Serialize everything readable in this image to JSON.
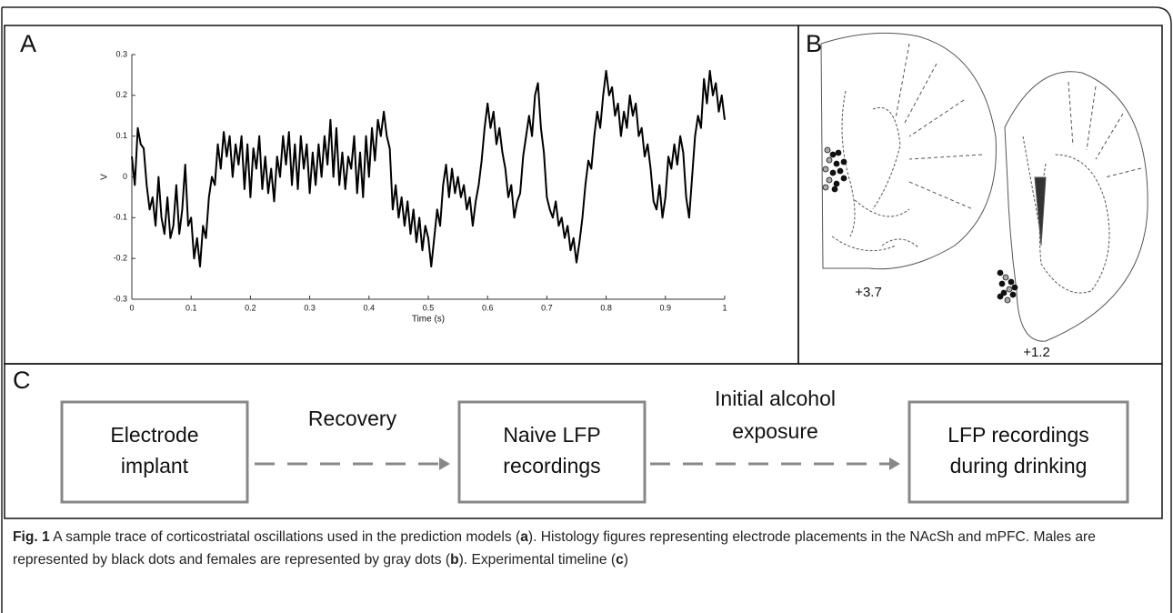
{
  "panels": {
    "a": "A",
    "b": "B",
    "c": "C"
  },
  "chart_data": {
    "type": "line",
    "color": "#000000",
    "xlabel": "Time (s)",
    "ylabel": "V",
    "xlim": [
      0,
      1
    ],
    "ylim": [
      -0.3,
      0.3
    ],
    "xticks": [
      0,
      0.1,
      0.2,
      0.3,
      0.4,
      0.5,
      0.6,
      0.7,
      0.8,
      0.9,
      1
    ],
    "yticks": [
      -0.3,
      -0.2,
      -0.1,
      0,
      0.1,
      0.2,
      0.3
    ],
    "x": [
      0,
      0.005,
      0.01,
      0.015,
      0.02,
      0.025,
      0.03,
      0.035,
      0.04,
      0.045,
      0.05,
      0.055,
      0.06,
      0.065,
      0.07,
      0.075,
      0.08,
      0.085,
      0.09,
      0.095,
      0.1,
      0.105,
      0.11,
      0.115,
      0.12,
      0.125,
      0.13,
      0.135,
      0.14,
      0.145,
      0.15,
      0.155,
      0.16,
      0.165,
      0.17,
      0.175,
      0.18,
      0.185,
      0.19,
      0.195,
      0.2,
      0.205,
      0.21,
      0.215,
      0.22,
      0.225,
      0.23,
      0.235,
      0.24,
      0.245,
      0.25,
      0.255,
      0.26,
      0.265,
      0.27,
      0.275,
      0.28,
      0.285,
      0.29,
      0.295,
      0.3,
      0.305,
      0.31,
      0.315,
      0.32,
      0.325,
      0.33,
      0.335,
      0.34,
      0.345,
      0.35,
      0.355,
      0.36,
      0.365,
      0.37,
      0.375,
      0.38,
      0.385,
      0.39,
      0.395,
      0.4,
      0.405,
      0.41,
      0.415,
      0.42,
      0.425,
      0.43,
      0.435,
      0.44,
      0.445,
      0.45,
      0.455,
      0.46,
      0.465,
      0.47,
      0.475,
      0.48,
      0.485,
      0.49,
      0.495,
      0.5,
      0.505,
      0.51,
      0.515,
      0.52,
      0.525,
      0.53,
      0.535,
      0.54,
      0.545,
      0.55,
      0.555,
      0.56,
      0.565,
      0.57,
      0.575,
      0.58,
      0.585,
      0.59,
      0.595,
      0.6,
      0.605,
      0.61,
      0.615,
      0.62,
      0.625,
      0.63,
      0.635,
      0.64,
      0.645,
      0.65,
      0.655,
      0.66,
      0.665,
      0.67,
      0.675,
      0.68,
      0.685,
      0.69,
      0.695,
      0.7,
      0.705,
      0.71,
      0.715,
      0.72,
      0.725,
      0.73,
      0.735,
      0.74,
      0.745,
      0.75,
      0.755,
      0.76,
      0.765,
      0.77,
      0.775,
      0.78,
      0.785,
      0.79,
      0.795,
      0.8,
      0.805,
      0.81,
      0.815,
      0.82,
      0.825,
      0.83,
      0.835,
      0.84,
      0.845,
      0.85,
      0.855,
      0.86,
      0.865,
      0.87,
      0.875,
      0.88,
      0.885,
      0.89,
      0.895,
      0.9,
      0.905,
      0.91,
      0.915,
      0.92,
      0.925,
      0.93,
      0.935,
      0.94,
      0.945,
      0.95,
      0.955,
      0.96,
      0.965,
      0.97,
      0.975,
      0.98,
      0.985,
      0.99,
      0.995,
      1
    ],
    "values": [
      0.05,
      -0.02,
      0.12,
      0.08,
      0.07,
      -0.02,
      -0.08,
      -0.05,
      -0.12,
      0,
      -0.1,
      -0.14,
      -0.05,
      -0.15,
      -0.12,
      -0.02,
      -0.14,
      -0.08,
      0.03,
      -0.12,
      -0.1,
      -0.2,
      -0.15,
      -0.22,
      -0.12,
      -0.15,
      -0.05,
      0,
      -0.02,
      0.08,
      0.02,
      0.11,
      0.05,
      0.1,
      0,
      0.08,
      0.03,
      0.1,
      -0.03,
      0.08,
      -0.05,
      0.07,
      0.02,
      0.1,
      -0.03,
      0.05,
      -0.04,
      0.02,
      -0.06,
      0.05,
      0,
      0.1,
      0.03,
      0.11,
      -0.02,
      0.08,
      -0.03,
      0.1,
      0.02,
      0.08,
      -0.04,
      0.06,
      -0.02,
      0.08,
      0,
      0.1,
      0.03,
      0.14,
      0,
      0.12,
      -0.02,
      0.06,
      -0.03,
      0.05,
      0.02,
      0.1,
      -0.04,
      0.06,
      -0.05,
      0.1,
      0,
      0.12,
      0.04,
      0.14,
      0.1,
      0.16,
      0.1,
      0.07,
      -0.08,
      -0.02,
      -0.1,
      -0.05,
      -0.12,
      -0.06,
      -0.14,
      -0.08,
      -0.16,
      -0.1,
      -0.18,
      -0.12,
      -0.15,
      -0.22,
      -0.15,
      -0.08,
      -0.12,
      -0.02,
      0.03,
      -0.05,
      0.02,
      -0.04,
      0,
      -0.05,
      -0.02,
      -0.08,
      -0.05,
      -0.12,
      -0.06,
      -0.02,
      0.04,
      0.12,
      0.18,
      0.12,
      0.16,
      0.08,
      0.12,
      0.06,
      0.02,
      -0.05,
      -0.02,
      -0.1,
      -0.06,
      -0.04,
      0.05,
      0.1,
      0.15,
      0.1,
      0.2,
      0.23,
      0.12,
      0.06,
      -0.05,
      -0.08,
      -0.1,
      -0.06,
      -0.12,
      -0.1,
      -0.15,
      -0.12,
      -0.18,
      -0.15,
      -0.21,
      -0.16,
      -0.1,
      -0.02,
      0.04,
      0.02,
      0.1,
      0.16,
      0.12,
      0.2,
      0.26,
      0.2,
      0.22,
      0.15,
      0.18,
      0.1,
      0.16,
      0.12,
      0.2,
      0.15,
      0.18,
      0.1,
      0.12,
      0.05,
      0.08,
      0.02,
      -0.06,
      -0.08,
      -0.02,
      -0.1,
      -0.05,
      0.05,
      0.02,
      0.08,
      0.03,
      0.1,
      0.06,
      -0.05,
      -0.1,
      0,
      0.1,
      0.15,
      0.12,
      0.24,
      0.18,
      0.26,
      0.2,
      0.23,
      0.16,
      0.2,
      0.14
    ]
  },
  "histology": {
    "section_1": "+3.7",
    "section_2": "+1.2"
  },
  "timeline": {
    "nodes": [
      {
        "lines": [
          "Electrode",
          "implant"
        ]
      },
      {
        "lines": [
          "Naive LFP",
          "recordings"
        ]
      },
      {
        "lines": [
          "LFP recordings",
          "during drinking"
        ]
      }
    ],
    "edges": [
      {
        "lines": [
          "Recovery"
        ]
      },
      {
        "lines": [
          "Initial alcohol",
          "exposure"
        ]
      }
    ]
  },
  "caption": {
    "label": "Fig. 1",
    "text_1": " A sample trace of corticostriatal oscillations used in the prediction models (",
    "ref_1": "a",
    "text_2": "). Histology figures representing electrode placements in the NAcSh and mPFC. Males are represented by black dots and females are represented by gray dots (",
    "ref_2": "b",
    "text_3": "). Experimental timeline (",
    "ref_3": "c",
    "text_4": ")"
  }
}
